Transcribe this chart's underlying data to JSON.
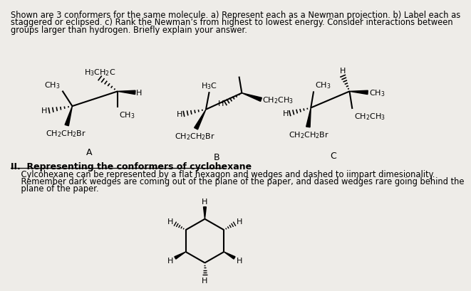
{
  "bg_color": "#eeece8",
  "title_lines": [
    "Shown are 3 conformers for the same molecule. a) Represent each as a Newman projection. b) Label each as",
    "staggered or eclipsed. c) Rank the Newman’s from highest to lowest energy. Consider interactions between",
    "groups larger than hydrogen. Briefly explain your answer."
  ],
  "section_heading": "II.  Representing the conformers of cyclohexane",
  "body_lines": [
    "    Cylcohexane can be represented by a flat hexagon and wedges and dashed to iimpart dimesionality.",
    "    Remember dark wedges are coming out of the plane of the paper, and dased wedges rare going behind the",
    "    plane of the paper."
  ],
  "label_A": "A",
  "label_B": "B",
  "label_C": "C"
}
